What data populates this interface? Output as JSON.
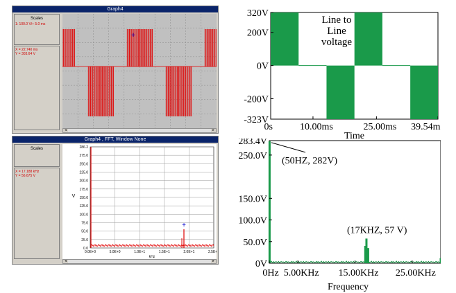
{
  "top_window": {
    "title": "Graph4",
    "scales_label": "Scales",
    "scale_readout": "1: 100.0 V/÷    5.0 ms",
    "cursor_x": "X = 22.740 ms",
    "cursor_y": "Y = 303.64 V"
  },
  "bottom_window": {
    "title": "Graph4 , FFT, Window None",
    "scales_label": "Scales",
    "cursor_x": "X = 17.188 kHz",
    "cursor_y": "Y = 56.675 V",
    "y_axis_label": "V",
    "x_axis_label": "kHz",
    "y_ticks": [
      "286.2",
      "275.0",
      "250.0",
      "225.0",
      "200.0",
      "175.0",
      "150.0",
      "125.0",
      "100.0",
      "75.0",
      "50.0",
      "25.0",
      "0.0"
    ],
    "x_ticks": [
      "0.0E+0",
      "5.0E+0",
      "1.0E+1",
      "1.5E+1",
      "2.0E+1",
      "2.5E+1"
    ]
  },
  "chart_data": [
    {
      "type": "area",
      "title": "Line to Line voltage",
      "xlabel": "Time",
      "ylabel": "",
      "x_tick_labels": [
        "0s",
        "10.00ms",
        "25.00ms",
        "39.54ms"
      ],
      "y_tick_labels": [
        "320V",
        "200V",
        "0V",
        "-200V",
        "-323V"
      ],
      "ylim": [
        -323,
        320
      ],
      "series": [
        {
          "values_segments": [
            {
              "x_start_ms": 0.0,
              "x_end_ms": 6.6,
              "level_V": 320
            },
            {
              "x_start_ms": 6.6,
              "x_end_ms": 13.2,
              "level_V": 0
            },
            {
              "x_start_ms": 13.2,
              "x_end_ms": 19.8,
              "level_V": -323
            },
            {
              "x_start_ms": 19.8,
              "x_end_ms": 26.4,
              "level_V": 320
            },
            {
              "x_start_ms": 26.4,
              "x_end_ms": 33.0,
              "level_V": 0
            },
            {
              "x_start_ms": 33.0,
              "x_end_ms": 39.54,
              "level_V": -323
            }
          ]
        }
      ],
      "color": "#1a9a4a",
      "grid": false
    },
    {
      "type": "bar",
      "title": "",
      "xlabel": "Frequency",
      "ylabel": "",
      "x_tick_labels": [
        "0Hz",
        "5.00KHz",
        "15.00KHz",
        "25.00KHz"
      ],
      "y_tick_labels": [
        "283.4V",
        "250.0V",
        "150.0V",
        "100.0V",
        "50.0V",
        "0V"
      ],
      "ylim": [
        0,
        283.4
      ],
      "xlim_khz": [
        0,
        30
      ],
      "annotations": [
        "(50HZ,  282V)",
        "(17KHZ,   57 V)"
      ],
      "peaks": [
        {
          "x_khz": 0.05,
          "value_V": 282
        },
        {
          "x_khz": 17.0,
          "value_V": 57
        },
        {
          "x_khz": 16.8,
          "value_V": 40
        },
        {
          "x_khz": 17.3,
          "value_V": 35
        },
        {
          "x_khz": 30.0,
          "value_V": 12
        }
      ],
      "color": "#1a9a4a",
      "grid": false
    }
  ]
}
